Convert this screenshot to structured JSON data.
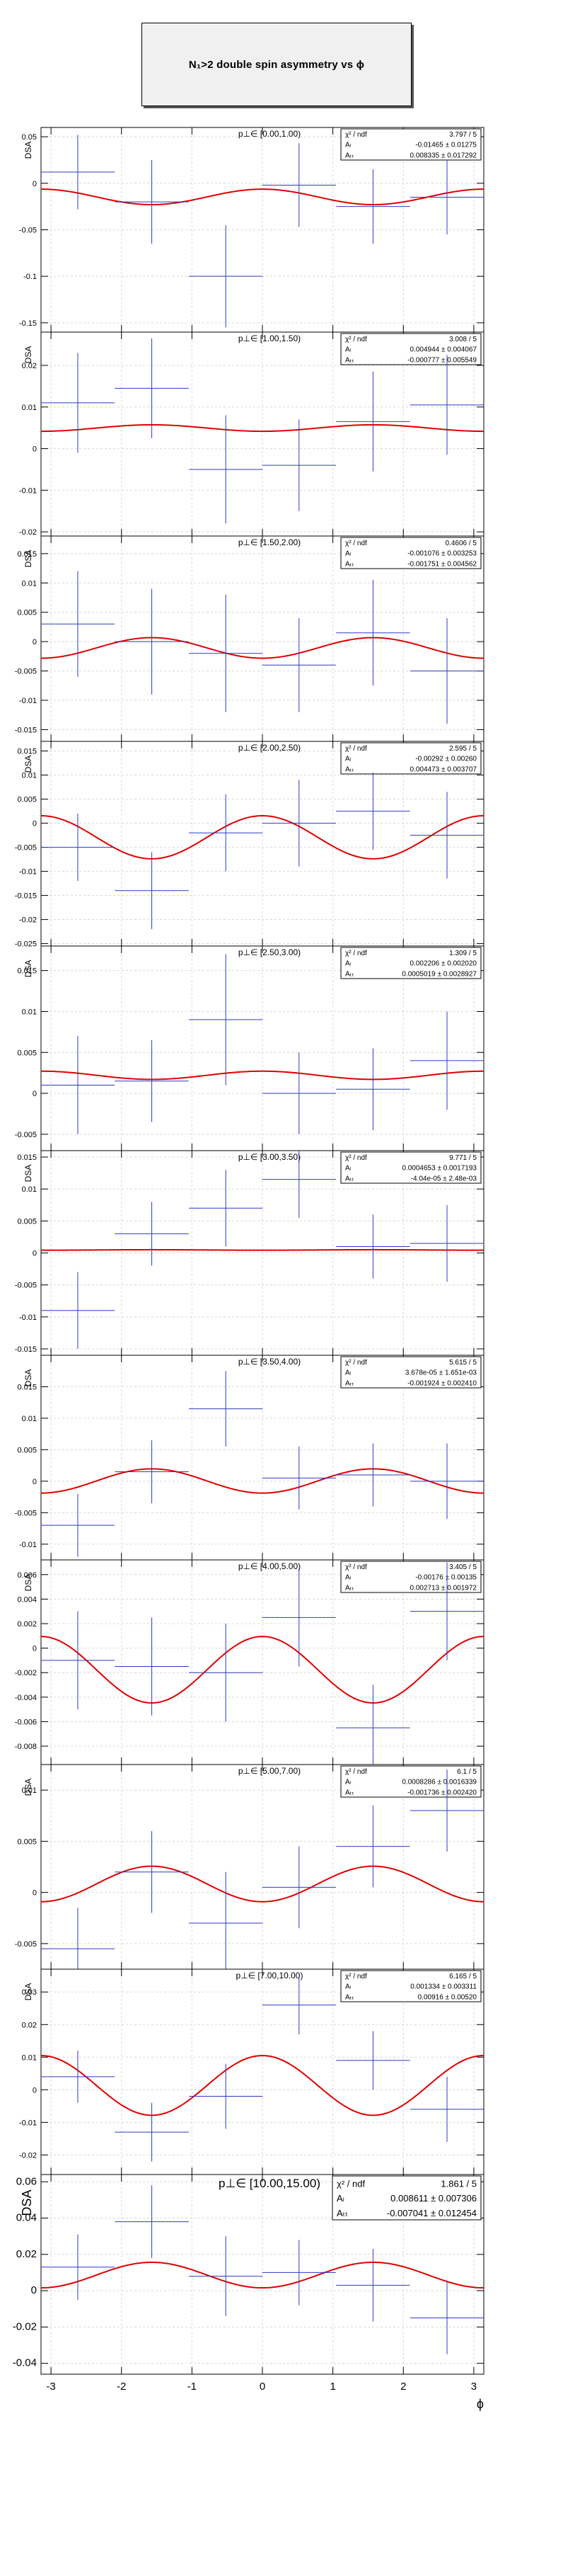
{
  "title": "N₁>2 double spin asymmetry vs ϕ",
  "ylabel": "DSA",
  "xlabel": "ϕ",
  "xlim": [
    -3.14159,
    3.14159
  ],
  "x_ticks": [
    -3,
    -2,
    -1,
    0,
    1,
    2,
    3
  ],
  "colors": {
    "data": "#2e3bbf",
    "fit": "#e00000",
    "frame": "#000000"
  },
  "chart_data": [
    {
      "type": "scatter",
      "title": "p⊥∈ [0.00,1.00)",
      "ylim": [
        -0.16,
        0.06
      ],
      "yticks": [
        "0.05",
        "0",
        "-0.05",
        "-0.1",
        "-0.15"
      ],
      "ytick_values": [
        0.05,
        0,
        -0.05,
        -0.1,
        -0.15
      ],
      "stats": {
        "chi2_ndf": "3.797 / 5",
        "A_L": "-0.01465 ± 0.01275",
        "A_TT": "0.008335 ± 0.017292"
      },
      "fit": {
        "A_L": -0.01465,
        "A_TT": 0.008335
      },
      "points": [
        [
          -2.62,
          0.012,
          0.5236,
          0.04
        ],
        [
          -1.57,
          -0.02,
          0.5236,
          0.045
        ],
        [
          -0.52,
          -0.1,
          0.5236,
          0.055
        ],
        [
          0.52,
          -0.002,
          0.5236,
          0.045
        ],
        [
          1.57,
          -0.025,
          0.5236,
          0.04
        ],
        [
          2.62,
          -0.015,
          0.5236,
          0.04
        ]
      ]
    },
    {
      "type": "scatter",
      "title": "p⊥∈ [1.00,1.50)",
      "ylim": [
        -0.021,
        0.028
      ],
      "yticks": [
        "0.02",
        "0.01",
        "0",
        "-0.01",
        "-0.02"
      ],
      "ytick_values": [
        0.02,
        0.01,
        0,
        -0.01,
        -0.02
      ],
      "stats": {
        "chi2_ndf": "3.008 / 5",
        "A_L": "0.004944 ± 0.004067",
        "A_TT": "-0.000777 ± 0.005549"
      },
      "fit": {
        "A_L": 0.004944,
        "A_TT": -0.000777
      },
      "points": [
        [
          -2.62,
          0.011,
          0.5236,
          0.012
        ],
        [
          -1.57,
          0.0145,
          0.5236,
          0.012
        ],
        [
          -0.52,
          -0.005,
          0.5236,
          0.013
        ],
        [
          0.52,
          -0.004,
          0.5236,
          0.011
        ],
        [
          1.57,
          0.0065,
          0.5236,
          0.012
        ],
        [
          2.62,
          0.0105,
          0.5236,
          0.012
        ]
      ]
    },
    {
      "type": "scatter",
      "title": "p⊥∈ [1.50,2.00)",
      "ylim": [
        -0.017,
        0.018
      ],
      "yticks": [
        "0.015",
        "0.01",
        "0.005",
        "0",
        "-0.005",
        "-0.01",
        "-0.015"
      ],
      "ytick_values": [
        0.015,
        0.01,
        0.005,
        0,
        -0.005,
        -0.01,
        -0.015
      ],
      "stats": {
        "chi2_ndf": "0.4606 / 5",
        "A_L": "-0.001076 ± 0.003253",
        "A_TT": "-0.001751 ± 0.004562"
      },
      "fit": {
        "A_L": -0.001076,
        "A_TT": -0.001751
      },
      "points": [
        [
          -2.62,
          0.003,
          0.5236,
          0.009
        ],
        [
          -1.57,
          0.0,
          0.5236,
          0.009
        ],
        [
          -0.52,
          -0.002,
          0.5236,
          0.01
        ],
        [
          0.52,
          -0.004,
          0.5236,
          0.008
        ],
        [
          1.57,
          0.0015,
          0.5236,
          0.009
        ],
        [
          2.62,
          -0.005,
          0.5236,
          0.009
        ]
      ]
    },
    {
      "type": "scatter",
      "title": "p⊥∈ [2.00,2.50)",
      "ylim": [
        -0.0255,
        0.017
      ],
      "yticks": [
        "0.015",
        "0.01",
        "0.005",
        "0",
        "-0.005",
        "-0.01",
        "-0.015",
        "-0.02",
        "-0.025"
      ],
      "ytick_values": [
        0.015,
        0.01,
        0.005,
        0,
        -0.005,
        -0.01,
        -0.015,
        -0.02,
        -0.025
      ],
      "stats": {
        "chi2_ndf": "2.595 / 5",
        "A_L": "-0.00292 ± 0.00260",
        "A_TT": "0.004473 ± 0.003707"
      },
      "fit": {
        "A_L": -0.00292,
        "A_TT": 0.004473
      },
      "points": [
        [
          -2.62,
          -0.005,
          0.5236,
          0.007
        ],
        [
          -1.57,
          -0.014,
          0.5236,
          0.008
        ],
        [
          -0.52,
          -0.002,
          0.5236,
          0.008
        ],
        [
          0.52,
          0.0,
          0.5236,
          0.009
        ],
        [
          1.57,
          0.0025,
          0.5236,
          0.008
        ],
        [
          2.62,
          -0.0025,
          0.5236,
          0.009
        ]
      ]
    },
    {
      "type": "scatter",
      "title": "p⊥∈ [2.50,3.00)",
      "ylim": [
        -0.007,
        0.018
      ],
      "yticks": [
        "0.015",
        "0.01",
        "0.005",
        "0",
        "-0.005"
      ],
      "ytick_values": [
        0.015,
        0.01,
        0.005,
        0,
        -0.005
      ],
      "stats": {
        "chi2_ndf": "1.309 / 5",
        "A_L": "0.002206 ± 0.002020",
        "A_TT": "0.0005019 ± 0.0028927"
      },
      "fit": {
        "A_L": 0.002206,
        "A_TT": 0.0005019
      },
      "points": [
        [
          -2.62,
          0.001,
          0.5236,
          0.006
        ],
        [
          -1.57,
          0.0015,
          0.5236,
          0.005
        ],
        [
          -0.52,
          0.009,
          0.5236,
          0.008
        ],
        [
          0.52,
          0.0,
          0.5236,
          0.005
        ],
        [
          1.57,
          0.0005,
          0.5236,
          0.005
        ],
        [
          2.62,
          0.004,
          0.5236,
          0.006
        ]
      ]
    },
    {
      "type": "scatter",
      "title": "p⊥∈ [3.00,3.50)",
      "ylim": [
        -0.016,
        0.016
      ],
      "yticks": [
        "0.015",
        "0.01",
        "0.005",
        "0",
        "-0.005",
        "-0.01",
        "-0.015"
      ],
      "ytick_values": [
        0.015,
        0.01,
        0.005,
        0,
        -0.005,
        -0.01,
        -0.015
      ],
      "stats": {
        "chi2_ndf": "9.771 / 5",
        "A_L": "0.0004653 ± 0.0017193",
        "A_TT": "-4.04e-05 ± 2.48e-03"
      },
      "fit": {
        "A_L": 0.0004653,
        "A_TT": -4.04e-05
      },
      "points": [
        [
          -2.62,
          -0.009,
          0.5236,
          0.006
        ],
        [
          -1.57,
          0.003,
          0.5236,
          0.005
        ],
        [
          -0.52,
          0.007,
          0.5236,
          0.006
        ],
        [
          0.52,
          0.0115,
          0.5236,
          0.006
        ],
        [
          1.57,
          0.001,
          0.5236,
          0.005
        ],
        [
          2.62,
          0.0015,
          0.5236,
          0.006
        ]
      ]
    },
    {
      "type": "scatter",
      "title": "p⊥∈ [3.50,4.00)",
      "ylim": [
        -0.0125,
        0.02
      ],
      "yticks": [
        "0.015",
        "0.01",
        "0.005",
        "0",
        "-0.005",
        "-0.01"
      ],
      "ytick_values": [
        0.015,
        0.01,
        0.005,
        0,
        -0.005,
        -0.01
      ],
      "stats": {
        "chi2_ndf": "5.615 / 5",
        "A_L": "3.678e-05 ± 1.651e-03",
        "A_TT": "-0.001924 ± 0.002410"
      },
      "fit": {
        "A_L": 3.678e-05,
        "A_TT": -0.001924
      },
      "points": [
        [
          -2.62,
          -0.007,
          0.5236,
          0.005
        ],
        [
          -1.57,
          0.0015,
          0.5236,
          0.005
        ],
        [
          -0.52,
          0.0115,
          0.5236,
          0.006
        ],
        [
          0.52,
          0.0005,
          0.5236,
          0.005
        ],
        [
          1.57,
          0.001,
          0.5236,
          0.005
        ],
        [
          2.62,
          0.0,
          0.5236,
          0.006
        ]
      ]
    },
    {
      "type": "scatter",
      "title": "p⊥∈ [4.00,5.00)",
      "ylim": [
        -0.0095,
        0.0072
      ],
      "yticks": [
        "0.006",
        "0.004",
        "0.002",
        "0",
        "-0.002",
        "-0.004",
        "-0.006",
        "-0.008"
      ],
      "ytick_values": [
        0.006,
        0.004,
        0.002,
        0,
        -0.002,
        -0.004,
        -0.006,
        -0.008
      ],
      "stats": {
        "chi2_ndf": "3.405 / 5",
        "A_L": "-0.00176 ± 0.00135",
        "A_TT": "0.002713 ± 0.001972"
      },
      "fit": {
        "A_L": -0.00176,
        "A_TT": 0.002713
      },
      "points": [
        [
          -2.62,
          -0.001,
          0.5236,
          0.004
        ],
        [
          -1.57,
          -0.0015,
          0.5236,
          0.004
        ],
        [
          -0.52,
          -0.002,
          0.5236,
          0.004
        ],
        [
          0.52,
          0.0025,
          0.5236,
          0.004
        ],
        [
          1.57,
          -0.0065,
          0.5236,
          0.0035
        ],
        [
          2.62,
          0.003,
          0.5236,
          0.004
        ]
      ]
    },
    {
      "type": "scatter",
      "title": "p⊥∈ [5.00,7.00)",
      "ylim": [
        -0.0075,
        0.0125
      ],
      "yticks": [
        "0.01",
        "0.005",
        "0",
        "-0.005"
      ],
      "ytick_values": [
        0.01,
        0.005,
        0,
        -0.005
      ],
      "stats": {
        "chi2_ndf": "6.1 / 5",
        "A_L": "0.0008286 ± 0.0016339",
        "A_TT": "-0.001736 ± 0.002420"
      },
      "fit": {
        "A_L": 0.0008286,
        "A_TT": -0.001736
      },
      "points": [
        [
          -2.62,
          -0.0055,
          0.5236,
          0.004
        ],
        [
          -1.57,
          0.002,
          0.5236,
          0.004
        ],
        [
          -0.52,
          -0.003,
          0.5236,
          0.005
        ],
        [
          0.52,
          0.0005,
          0.5236,
          0.004
        ],
        [
          1.57,
          0.0045,
          0.5236,
          0.004
        ],
        [
          2.62,
          0.008,
          0.5236,
          0.004
        ]
      ]
    },
    {
      "type": "scatter",
      "title": "p⊥∈ [7.00,10.00)",
      "ylim": [
        -0.026,
        0.037
      ],
      "yticks": [
        "0.03",
        "0.02",
        "0.01",
        "0",
        "-0.01",
        "-0.02"
      ],
      "ytick_values": [
        0.03,
        0.02,
        0.01,
        0,
        -0.01,
        -0.02
      ],
      "stats": {
        "chi2_ndf": "6.165 / 5",
        "A_L": "0.001334 ± 0.003311",
        "A_TT": "0.00916 ± 0.00520"
      },
      "fit": {
        "A_L": 0.001334,
        "A_TT": 0.00916
      },
      "points": [
        [
          -2.62,
          0.004,
          0.5236,
          0.008
        ],
        [
          -1.57,
          -0.013,
          0.5236,
          0.009
        ],
        [
          -0.52,
          -0.002,
          0.5236,
          0.01
        ],
        [
          0.52,
          0.026,
          0.5236,
          0.009
        ],
        [
          1.57,
          0.009,
          0.5236,
          0.009
        ],
        [
          2.62,
          -0.006,
          0.5236,
          0.01
        ]
      ]
    },
    {
      "type": "scatter",
      "title": "p⊥∈ [10.00,15.00)",
      "ylim": [
        -0.046,
        0.064
      ],
      "yticks": [
        "0.06",
        "0.04",
        "0.02",
        "0",
        "-0.02",
        "-0.04"
      ],
      "ytick_values": [
        0.06,
        0.04,
        0.02,
        0,
        -0.02,
        -0.04
      ],
      "stats": {
        "chi2_ndf": "1.861 / 5",
        "A_L": "0.008611 ± 0.007306",
        "A_TT": "-0.007041 ± 0.012454"
      },
      "fit": {
        "A_L": 0.008611,
        "A_TT": -0.007041
      },
      "points": [
        [
          -2.62,
          0.013,
          0.5236,
          0.018
        ],
        [
          -1.57,
          0.038,
          0.5236,
          0.02
        ],
        [
          -0.52,
          0.008,
          0.5236,
          0.022
        ],
        [
          0.52,
          0.01,
          0.5236,
          0.018
        ],
        [
          1.57,
          0.003,
          0.5236,
          0.02
        ],
        [
          2.62,
          -0.015,
          0.5236,
          0.02
        ]
      ]
    }
  ]
}
